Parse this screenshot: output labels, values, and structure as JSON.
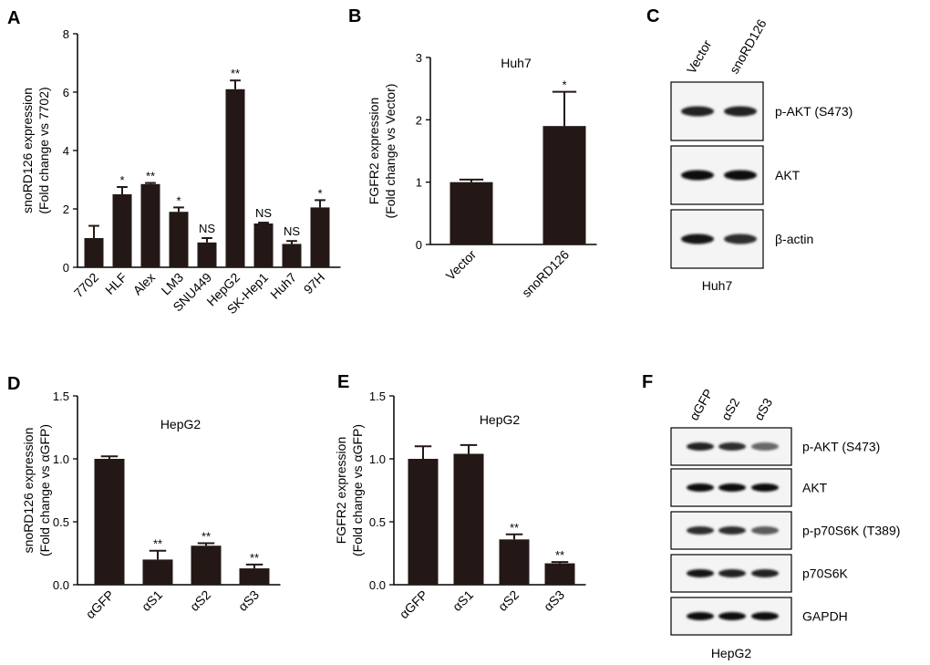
{
  "chart_data": [
    {
      "panel": "A",
      "type": "bar",
      "categories": [
        "7702",
        "HLF",
        "Alex",
        "LM3",
        "SNU449",
        "HepG2",
        "SK-Hep1",
        "Huh7",
        "97H"
      ],
      "values": [
        1.0,
        2.5,
        2.85,
        1.9,
        0.85,
        6.1,
        1.5,
        0.8,
        2.05
      ],
      "errors": [
        0.42,
        0.25,
        0.04,
        0.15,
        0.15,
        0.3,
        0.03,
        0.1,
        0.25
      ],
      "significance": [
        "",
        "*",
        "**",
        "*",
        "NS",
        "**",
        "NS",
        "NS",
        "*"
      ],
      "title": "",
      "ylabel": [
        "snoRD126  expression",
        "(Fold change vs 7702)"
      ],
      "ylim": [
        0,
        8
      ],
      "yticks": [
        "0",
        "2",
        "4",
        "6",
        "8"
      ],
      "grid": false
    },
    {
      "panel": "B",
      "type": "bar",
      "categories": [
        "Vector",
        "snoRD126"
      ],
      "values": [
        1.0,
        1.9
      ],
      "errors": [
        0.04,
        0.55
      ],
      "significance": [
        "",
        "*"
      ],
      "title": "Huh7",
      "ylabel": [
        "FGFR2 expression",
        "(Fold change vs Vector)"
      ],
      "ylim": [
        0,
        3
      ],
      "yticks": [
        "0",
        "1",
        "2",
        "3"
      ],
      "grid": false
    },
    {
      "panel": "D",
      "type": "bar",
      "categories": [
        "αGFP",
        "αS1",
        "αS2",
        "αS3"
      ],
      "values": [
        1.0,
        0.2,
        0.31,
        0.13
      ],
      "errors": [
        0.02,
        0.07,
        0.02,
        0.03
      ],
      "significance": [
        "",
        "**",
        "**",
        "**"
      ],
      "title": "HepG2",
      "ylabel": [
        "snoRD126  expression",
        "(Fold change vs αGFP)"
      ],
      "ylim": [
        0,
        1.5
      ],
      "yticks": [
        "0.0",
        "0.5",
        "1.0",
        "1.5"
      ],
      "grid": false
    },
    {
      "panel": "E",
      "type": "bar",
      "categories": [
        "αGFP",
        "αS1",
        "αS2",
        "αS3"
      ],
      "values": [
        1.0,
        1.04,
        0.36,
        0.17
      ],
      "errors": [
        0.1,
        0.07,
        0.04,
        0.01
      ],
      "significance": [
        "",
        "",
        "**",
        "**"
      ],
      "title": "HepG2",
      "ylabel": [
        "FGFR2 expression",
        "(Fold change vs αGFP)"
      ],
      "ylim": [
        0,
        1.5
      ],
      "yticks": [
        "0.0",
        "0.5",
        "1.0",
        "1.5"
      ],
      "grid": false
    }
  ],
  "panel_letters": {
    "a": "A",
    "b": "B",
    "c": "C",
    "d": "D",
    "e": "E",
    "f": "F"
  },
  "blots": {
    "C": {
      "lanes": [
        "Vector",
        "snoRD126"
      ],
      "rows": [
        {
          "label": "p-AKT (S473)",
          "intensity": [
            0.85,
            0.85
          ]
        },
        {
          "label": "AKT",
          "intensity": [
            0.95,
            0.95
          ]
        },
        {
          "label": "β-actin",
          "intensity": [
            0.9,
            0.8
          ]
        }
      ],
      "cell_line": "Huh7"
    },
    "F": {
      "lanes": [
        "αGFP",
        "αS2",
        "αS3"
      ],
      "rows": [
        {
          "label": "p-AKT (S473)",
          "intensity": [
            0.85,
            0.8,
            0.55
          ]
        },
        {
          "label": "AKT",
          "intensity": [
            0.95,
            0.95,
            0.95
          ]
        },
        {
          "label": "p-p70S6K (T389)",
          "intensity": [
            0.8,
            0.8,
            0.6
          ]
        },
        {
          "label": "p70S6K",
          "intensity": [
            0.9,
            0.85,
            0.85
          ]
        },
        {
          "label": "GAPDH",
          "intensity": [
            0.95,
            0.95,
            0.95
          ]
        }
      ],
      "cell_line": "HepG2"
    }
  },
  "colors": {
    "bar": "#231815",
    "axis": "#000000"
  }
}
